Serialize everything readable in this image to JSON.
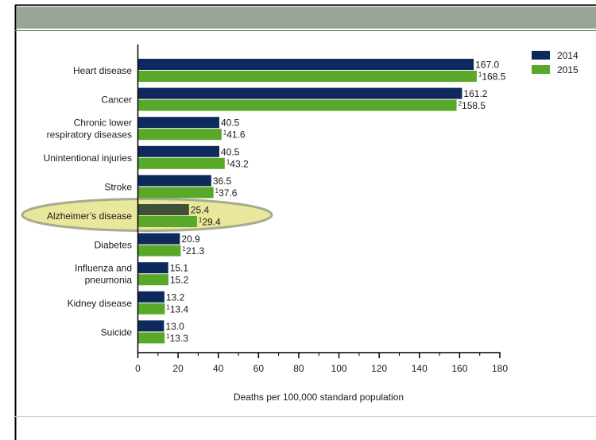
{
  "colors": {
    "series_2014": "#0e2a5c",
    "series_2015": "#5aa82a",
    "header_bar": "#96a596",
    "highlight_fill": "#e8e79b",
    "highlight_stroke": "#a7ab8e",
    "highlight_bar_2014": "#3e4f3a"
  },
  "chart_data": {
    "type": "bar",
    "orientation": "horizontal",
    "categories": [
      "Heart disease",
      "Cancer",
      "Chronic lower respiratory diseases",
      "Unintentional injuries",
      "Stroke",
      "Alzheimer's disease",
      "Diabetes",
      "Influenza and pneumonia",
      "Kidney disease",
      "Suicide"
    ],
    "category_lines": [
      [
        "Heart disease"
      ],
      [
        "Cancer"
      ],
      [
        "Chronic lower",
        "respiratory diseases"
      ],
      [
        "Unintentional injuries"
      ],
      [
        "Stroke"
      ],
      [
        "Alzheimer’s disease"
      ],
      [
        "Diabetes"
      ],
      [
        "Influenza and",
        "pneumonia"
      ],
      [
        "Kidney disease"
      ],
      [
        "Suicide"
      ]
    ],
    "series": [
      {
        "name": "2014",
        "values": [
          167.0,
          161.2,
          40.5,
          40.5,
          36.5,
          25.4,
          20.9,
          15.1,
          13.2,
          13.0
        ],
        "labels": [
          "167.0",
          "161.2",
          "40.5",
          "40.5",
          "36.5",
          "25.4",
          "20.9",
          "15.1",
          "13.2",
          "13.0"
        ],
        "label_marks": [
          "",
          "",
          "",
          "",
          "",
          "",
          "",
          "",
          "",
          ""
        ]
      },
      {
        "name": "2015",
        "values": [
          168.5,
          158.5,
          41.6,
          43.2,
          37.6,
          29.4,
          21.3,
          15.2,
          13.4,
          13.3
        ],
        "labels": [
          "168.5",
          "158.5",
          "41.6",
          "43.2",
          "37.6",
          "29.4",
          "21.3",
          "15.2",
          "13.4",
          "13.3"
        ],
        "label_marks": [
          "1",
          "2",
          "1",
          "1",
          "1",
          "1",
          "1",
          "",
          "1",
          "1"
        ]
      }
    ],
    "xlim": [
      0,
      180
    ],
    "xticks": [
      0,
      20,
      40,
      60,
      80,
      100,
      120,
      140,
      160,
      180
    ],
    "xlabel": "Deaths per 100,000 standard population",
    "ylabel": "",
    "title": "",
    "legend_position": "top-right",
    "highlighted_category": "Alzheimer's disease",
    "grid": false
  }
}
